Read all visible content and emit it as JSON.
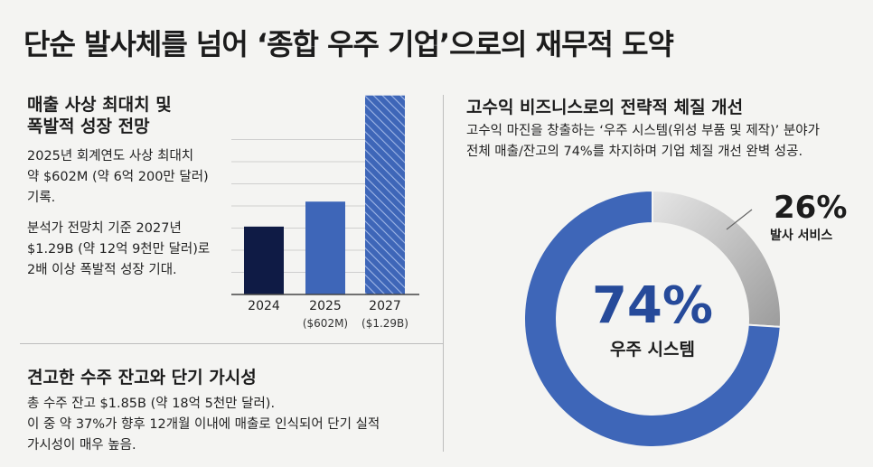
{
  "page": {
    "title": "단순 발사체를 넘어 ‘종합 우주 기업’으로의 재무적 도약"
  },
  "left_top": {
    "heading_line1": "매출 사상 최대치 및",
    "heading_line2": "폭발적 성장 전망",
    "para1_line1": "2025년 회계연도 사상 최대치",
    "para1_line2": "약 $602M (약 6억 200만 달러)",
    "para1_line3": "기록.",
    "para2_line1": "분석가 전망치 기준 2027년",
    "para2_line2": "$1.29B (약 12억 9천만 달러)로",
    "para2_line3": "2배 이상 폭발적 성장 기대."
  },
  "left_bottom": {
    "heading": "견고한 수주 잔고와 단기 가시성",
    "line1": "총 수주 잔고 $1.85B (약 18억 5천만 달러).",
    "line2": "이 중 약 37%가 향후 12개월 이내에 매출로 인식되어 단기 실적",
    "line3": "가시성이 매우 높음."
  },
  "right": {
    "heading": "고수익 비즈니스로의 전략적 체질 개선",
    "line1": "고수익 마진을 창출하는 ‘우주 시스템(위성 부품 및 제작)’ 분야가",
    "line2": "전체 매출/잔고의 74%를 차지하며 기업 체질 개선 완벽 성공."
  },
  "colors": {
    "navy": "#0f1b45",
    "blue": "#3e66b8",
    "hatch_blue": "#3e66b8",
    "gray": "#bdbdbd",
    "center_pct": "#264a9a"
  },
  "chart_data": [
    {
      "type": "bar",
      "title": "",
      "categories": [
        "2024",
        "2025",
        "2027"
      ],
      "sublabels": [
        "",
        "($602M)",
        "($1.29B)"
      ],
      "values": [
        0.44,
        0.602,
        1.29
      ],
      "unit": "USD billions",
      "ylim": [
        0,
        1.3
      ],
      "grid": true,
      "styles": [
        "solid-navy",
        "solid-blue",
        "hatched-blue"
      ],
      "xlabel": "",
      "ylabel": ""
    },
    {
      "type": "pie",
      "variant": "donut",
      "slices": [
        {
          "name": "우주 시스템",
          "value": 74,
          "label": "74%",
          "color": "#3e66b8"
        },
        {
          "name": "발사 서비스",
          "value": 26,
          "label": "26%",
          "color": "#bdbdbd"
        }
      ],
      "legend": "none"
    }
  ]
}
